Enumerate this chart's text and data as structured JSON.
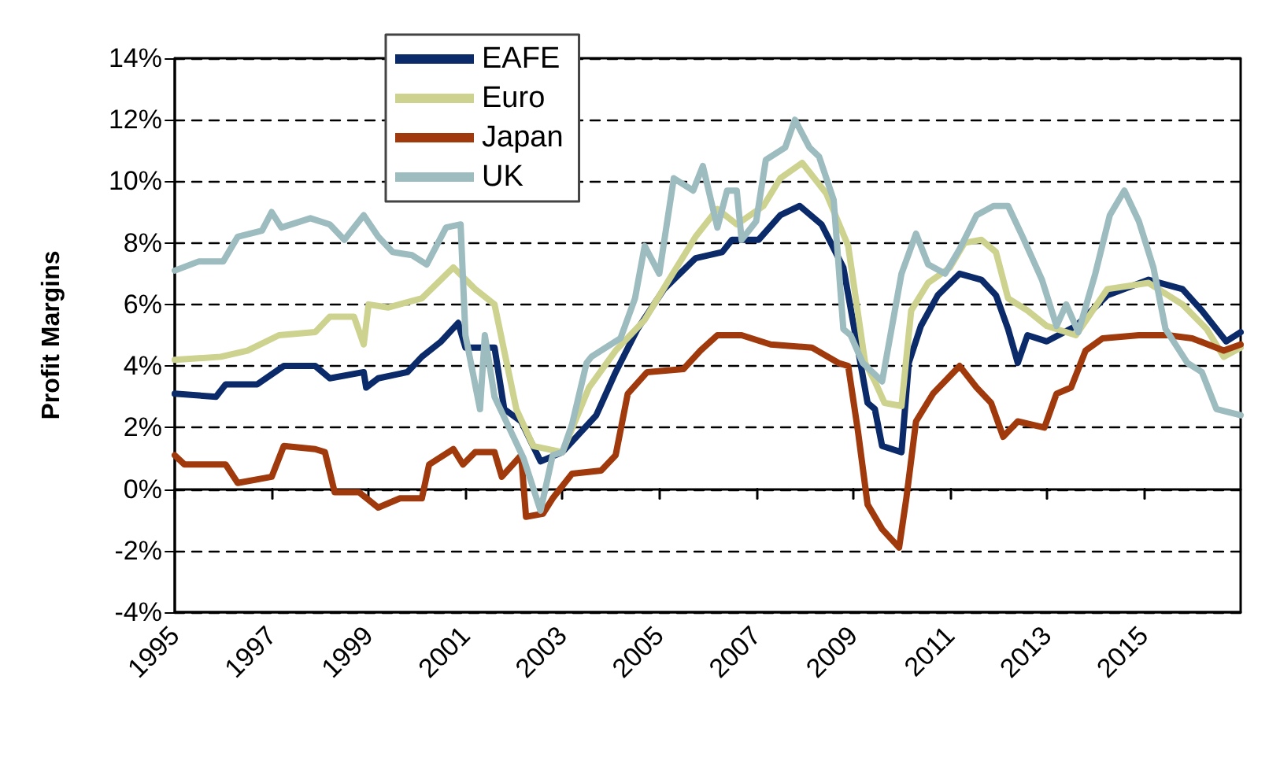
{
  "chart_data": {
    "type": "line",
    "ylabel": "Profit Margins",
    "xlim": [
      1995,
      2017
    ],
    "xticks": [
      1995,
      1997,
      1999,
      2001,
      2003,
      2005,
      2007,
      2009,
      2011,
      2013,
      2015
    ],
    "ylim": [
      -4,
      14
    ],
    "yticks": [
      {
        "value": -4,
        "label": "-4%"
      },
      {
        "value": -2,
        "label": "-2%"
      },
      {
        "value": 0,
        "label": "0%"
      },
      {
        "value": 2,
        "label": "2%"
      },
      {
        "value": 4,
        "label": "4%"
      },
      {
        "value": 6,
        "label": "6%"
      },
      {
        "value": 8,
        "label": "8%"
      },
      {
        "value": 10,
        "label": "10%"
      },
      {
        "value": 12,
        "label": "12%"
      },
      {
        "value": 14,
        "label": "14%"
      }
    ],
    "grid": "y",
    "legend": "top left",
    "series": [
      {
        "name": "EAFE",
        "color": "#0b2a6a",
        "x": [
          1995.0,
          1995.85,
          1996.05,
          1996.7,
          1997.25,
          1997.9,
          1998.2,
          1998.9,
          1998.95,
          1999.2,
          1999.8,
          2000.1,
          2000.5,
          2000.85,
          2001.0,
          2001.6,
          2001.8,
          2002.15,
          2002.55,
          2003.0,
          2003.7,
          2004.1,
          2004.55,
          2005.1,
          2005.75,
          2006.3,
          2006.5,
          2007.05,
          2007.5,
          2007.9,
          2008.35,
          2008.8,
          2009.3,
          2009.45,
          2009.6,
          2010.0,
          2010.15,
          2010.4,
          2010.75,
          2011.2,
          2011.65,
          2011.95,
          2012.2,
          2012.4,
          2012.6,
          2013.0,
          2013.6,
          2014.25,
          2015.1,
          2015.8,
          2016.2,
          2016.7,
          2017.0
        ],
        "values": [
          3.1,
          3.0,
          3.4,
          3.4,
          4.0,
          4.0,
          3.6,
          3.8,
          3.3,
          3.6,
          3.8,
          4.3,
          4.8,
          5.4,
          4.6,
          4.6,
          2.6,
          2.2,
          0.9,
          1.2,
          2.4,
          3.8,
          5.2,
          6.5,
          7.5,
          7.7,
          8.1,
          8.1,
          8.9,
          9.2,
          8.6,
          7.2,
          2.8,
          2.6,
          1.4,
          1.2,
          4.1,
          5.3,
          6.3,
          7.0,
          6.8,
          6.3,
          5.2,
          4.1,
          5.0,
          4.8,
          5.3,
          6.3,
          6.8,
          6.5,
          5.8,
          4.8,
          5.1
        ]
      },
      {
        "name": "Euro",
        "color": "#cdd28f",
        "x": [
          1995.0,
          1995.95,
          1996.5,
          1997.15,
          1997.9,
          1998.2,
          1998.7,
          1998.9,
          1999.0,
          1999.4,
          2000.1,
          2000.75,
          2001.2,
          2001.6,
          2002.05,
          2002.4,
          2003.0,
          2003.55,
          2004.1,
          2004.7,
          2005.2,
          2005.75,
          2006.2,
          2006.6,
          2007.15,
          2007.5,
          2007.95,
          2008.45,
          2008.9,
          2009.25,
          2009.45,
          2009.65,
          2010.0,
          2010.2,
          2010.55,
          2011.0,
          2011.3,
          2011.65,
          2011.95,
          2012.2,
          2012.6,
          2013.0,
          2013.6,
          2014.25,
          2015.1,
          2015.8,
          2016.3,
          2016.65,
          2017.0
        ],
        "values": [
          4.2,
          4.3,
          4.5,
          5.0,
          5.1,
          5.6,
          5.6,
          4.7,
          6.0,
          5.9,
          6.2,
          7.2,
          6.5,
          6.0,
          2.6,
          1.4,
          1.2,
          3.3,
          4.5,
          5.5,
          6.8,
          8.2,
          9.1,
          8.6,
          9.2,
          10.1,
          10.6,
          9.6,
          7.9,
          4.1,
          3.5,
          2.8,
          2.7,
          5.8,
          6.7,
          7.2,
          8.0,
          8.1,
          7.7,
          6.2,
          5.8,
          5.3,
          5.0,
          6.5,
          6.7,
          6.0,
          5.2,
          4.3,
          4.6
        ]
      },
      {
        "name": "Japan",
        "color": "#a0390c",
        "x": [
          1995.0,
          1995.2,
          1996.05,
          1996.3,
          1997.0,
          1997.25,
          1997.9,
          1998.1,
          1998.3,
          1998.8,
          1999.2,
          1999.65,
          2000.1,
          2000.25,
          2000.75,
          2000.95,
          2001.2,
          2001.6,
          2001.75,
          2002.15,
          2002.25,
          2002.6,
          2002.8,
          2003.2,
          2003.8,
          2004.1,
          2004.35,
          2004.75,
          2005.5,
          2005.85,
          2006.2,
          2006.7,
          2007.3,
          2008.15,
          2008.7,
          2008.9,
          2009.1,
          2009.3,
          2009.6,
          2009.95,
          2010.1,
          2010.3,
          2010.65,
          2011.2,
          2011.55,
          2011.85,
          2012.1,
          2012.4,
          2012.95,
          2013.2,
          2013.5,
          2013.8,
          2014.15,
          2014.9,
          2015.5,
          2016.0,
          2016.65,
          2017.0
        ],
        "values": [
          1.1,
          0.8,
          0.8,
          0.2,
          0.4,
          1.4,
          1.3,
          1.2,
          -0.1,
          -0.1,
          -0.6,
          -0.3,
          -0.3,
          0.8,
          1.3,
          0.8,
          1.2,
          1.2,
          0.4,
          1.1,
          -0.9,
          -0.8,
          -0.3,
          0.5,
          0.6,
          1.1,
          3.1,
          3.8,
          3.9,
          4.5,
          5.0,
          5.0,
          4.7,
          4.6,
          4.1,
          4.0,
          1.9,
          -0.5,
          -1.3,
          -1.9,
          -0.3,
          2.2,
          3.1,
          4.0,
          3.3,
          2.8,
          1.7,
          2.2,
          2.0,
          3.1,
          3.3,
          4.5,
          4.9,
          5.0,
          5.0,
          4.9,
          4.5,
          4.7
        ]
      },
      {
        "name": "UK",
        "color": "#9dbcc0",
        "x": [
          1995.0,
          1995.5,
          1996.0,
          1996.3,
          1996.8,
          1997.0,
          1997.2,
          1997.8,
          1998.2,
          1998.5,
          1998.9,
          1999.2,
          1999.5,
          1999.9,
          2000.2,
          2000.6,
          2000.9,
          2001.0,
          2001.3,
          2001.4,
          2001.6,
          2001.9,
          2002.2,
          2002.55,
          2002.8,
          2003.0,
          2003.2,
          2003.5,
          2003.6,
          2004.2,
          2004.5,
          2004.7,
          2005.0,
          2005.3,
          2005.7,
          2005.9,
          2006.2,
          2006.4,
          2006.6,
          2006.7,
          2007.0,
          2007.2,
          2007.6,
          2007.8,
          2008.1,
          2008.3,
          2008.6,
          2008.8,
          2008.95,
          2009.2,
          2009.6,
          2010.0,
          2010.3,
          2010.55,
          2010.9,
          2011.2,
          2011.55,
          2011.9,
          2012.2,
          2012.5,
          2012.9,
          2013.2,
          2013.4,
          2013.65,
          2014.0,
          2014.3,
          2014.6,
          2014.9,
          2015.2,
          2015.45,
          2015.9,
          2016.2,
          2016.5,
          2017.0
        ],
        "values": [
          7.1,
          7.4,
          7.4,
          8.2,
          8.4,
          9.0,
          8.5,
          8.8,
          8.6,
          8.1,
          8.9,
          8.2,
          7.7,
          7.6,
          7.3,
          8.5,
          8.6,
          5.0,
          2.6,
          5.0,
          3.0,
          2.0,
          1.0,
          -0.7,
          1.1,
          1.2,
          2.1,
          4.1,
          4.3,
          4.9,
          6.2,
          7.9,
          7.0,
          10.1,
          9.7,
          10.5,
          8.5,
          9.7,
          9.7,
          8.1,
          8.7,
          10.7,
          11.1,
          12.0,
          11.1,
          10.8,
          9.4,
          5.2,
          5.0,
          4.1,
          3.5,
          7.0,
          8.3,
          7.3,
          7.0,
          7.8,
          8.9,
          9.2,
          9.2,
          8.2,
          6.8,
          5.3,
          6.0,
          5.1,
          7.0,
          8.9,
          9.7,
          8.7,
          7.2,
          5.2,
          4.1,
          3.8,
          2.6,
          2.4
        ]
      }
    ]
  }
}
